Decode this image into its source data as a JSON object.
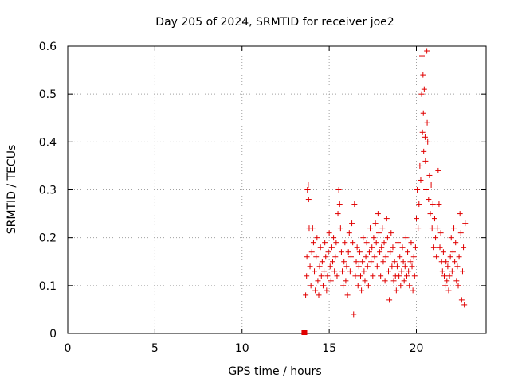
{
  "chart_data": {
    "type": "scatter",
    "title": "Day 205 of 2024, SRMTID for receiver joe2",
    "xlabel": "GPS time / hours",
    "ylabel": "SRMTID / TECUs",
    "xlim": [
      0,
      24
    ],
    "ylim": [
      0,
      0.6
    ],
    "xticks": [
      0,
      5,
      10,
      15,
      20
    ],
    "xtick_labels": [
      "0",
      "5",
      "10",
      "15",
      "20"
    ],
    "yticks": [
      0,
      0.1,
      0.2,
      0.3,
      0.4,
      0.5,
      0.6
    ],
    "ytick_labels": [
      "0",
      "0.1",
      "0.2",
      "0.3",
      "0.4",
      "0.5",
      "0.6"
    ],
    "grid": true,
    "marker": "plus",
    "color": "#e00000",
    "series": [
      {
        "name": "SRMTID",
        "points": [
          [
            13.55,
            0.0
          ],
          [
            13.6,
            0.0
          ],
          [
            13.65,
            0.08
          ],
          [
            13.7,
            0.12
          ],
          [
            13.72,
            0.16
          ],
          [
            13.75,
            0.3
          ],
          [
            13.8,
            0.31
          ],
          [
            13.82,
            0.28
          ],
          [
            13.85,
            0.22
          ],
          [
            13.9,
            0.14
          ],
          [
            13.95,
            0.1
          ],
          [
            14.0,
            0.17
          ],
          [
            14.05,
            0.22
          ],
          [
            14.1,
            0.19
          ],
          [
            14.15,
            0.13
          ],
          [
            14.2,
            0.09
          ],
          [
            14.25,
            0.16
          ],
          [
            14.3,
            0.2
          ],
          [
            14.35,
            0.11
          ],
          [
            14.4,
            0.08
          ],
          [
            14.45,
            0.14
          ],
          [
            14.5,
            0.18
          ],
          [
            14.55,
            0.12
          ],
          [
            14.6,
            0.15
          ],
          [
            14.65,
            0.1
          ],
          [
            14.7,
            0.13
          ],
          [
            14.75,
            0.19
          ],
          [
            14.8,
            0.16
          ],
          [
            14.85,
            0.09
          ],
          [
            14.9,
            0.12
          ],
          [
            14.95,
            0.17
          ],
          [
            15.0,
            0.21
          ],
          [
            15.05,
            0.14
          ],
          [
            15.1,
            0.11
          ],
          [
            15.15,
            0.18
          ],
          [
            15.2,
            0.15
          ],
          [
            15.25,
            0.2
          ],
          [
            15.3,
            0.13
          ],
          [
            15.35,
            0.16
          ],
          [
            15.4,
            0.19
          ],
          [
            15.45,
            0.12
          ],
          [
            15.5,
            0.25
          ],
          [
            15.55,
            0.3
          ],
          [
            15.6,
            0.27
          ],
          [
            15.65,
            0.22
          ],
          [
            15.7,
            0.17
          ],
          [
            15.75,
            0.13
          ],
          [
            15.8,
            0.1
          ],
          [
            15.85,
            0.15
          ],
          [
            15.9,
            0.19
          ],
          [
            15.95,
            0.11
          ],
          [
            16.0,
            0.14
          ],
          [
            16.05,
            0.08
          ],
          [
            16.1,
            0.17
          ],
          [
            16.15,
            0.21
          ],
          [
            16.2,
            0.13
          ],
          [
            16.25,
            0.16
          ],
          [
            16.3,
            0.23
          ],
          [
            16.35,
            0.19
          ],
          [
            16.4,
            0.04
          ],
          [
            16.45,
            0.27
          ],
          [
            16.5,
            0.12
          ],
          [
            16.55,
            0.15
          ],
          [
            16.6,
            0.18
          ],
          [
            16.65,
            0.1
          ],
          [
            16.7,
            0.14
          ],
          [
            16.75,
            0.17
          ],
          [
            16.8,
            0.12
          ],
          [
            16.85,
            0.09
          ],
          [
            16.9,
            0.15
          ],
          [
            16.95,
            0.2
          ],
          [
            17.0,
            0.13
          ],
          [
            17.05,
            0.11
          ],
          [
            17.1,
            0.16
          ],
          [
            17.15,
            0.19
          ],
          [
            17.2,
            0.14
          ],
          [
            17.25,
            0.1
          ],
          [
            17.3,
            0.17
          ],
          [
            17.35,
            0.22
          ],
          [
            17.4,
            0.15
          ],
          [
            17.45,
            0.18
          ],
          [
            17.5,
            0.12
          ],
          [
            17.55,
            0.2
          ],
          [
            17.6,
            0.16
          ],
          [
            17.65,
            0.23
          ],
          [
            17.7,
            0.19
          ],
          [
            17.75,
            0.14
          ],
          [
            17.8,
            0.25
          ],
          [
            17.85,
            0.21
          ],
          [
            17.9,
            0.17
          ],
          [
            17.95,
            0.12
          ],
          [
            18.0,
            0.18
          ],
          [
            18.05,
            0.22
          ],
          [
            18.1,
            0.15
          ],
          [
            18.15,
            0.19
          ],
          [
            18.2,
            0.11
          ],
          [
            18.25,
            0.16
          ],
          [
            18.3,
            0.24
          ],
          [
            18.35,
            0.2
          ],
          [
            18.4,
            0.13
          ],
          [
            18.45,
            0.07
          ],
          [
            18.5,
            0.17
          ],
          [
            18.55,
            0.21
          ],
          [
            18.6,
            0.14
          ],
          [
            18.65,
            0.18
          ],
          [
            18.7,
            0.11
          ],
          [
            18.75,
            0.15
          ],
          [
            18.8,
            0.12
          ],
          [
            18.85,
            0.09
          ],
          [
            18.9,
            0.14
          ],
          [
            18.95,
            0.19
          ],
          [
            19.0,
            0.12
          ],
          [
            19.05,
            0.16
          ],
          [
            19.1,
            0.1
          ],
          [
            19.15,
            0.13
          ],
          [
            19.2,
            0.18
          ],
          [
            19.25,
            0.15
          ],
          [
            19.3,
            0.11
          ],
          [
            19.35,
            0.14
          ],
          [
            19.4,
            0.2
          ],
          [
            19.45,
            0.12
          ],
          [
            19.5,
            0.17
          ],
          [
            19.55,
            0.13
          ],
          [
            19.6,
            0.1
          ],
          [
            19.65,
            0.15
          ],
          [
            19.7,
            0.19
          ],
          [
            19.75,
            0.14
          ],
          [
            19.8,
            0.09
          ],
          [
            19.85,
            0.16
          ],
          [
            19.9,
            0.12
          ],
          [
            19.95,
            0.18
          ],
          [
            20.0,
            0.24
          ],
          [
            20.05,
            0.3
          ],
          [
            20.1,
            0.22
          ],
          [
            20.15,
            0.27
          ],
          [
            20.2,
            0.35
          ],
          [
            20.25,
            0.32
          ],
          [
            20.3,
            0.5
          ],
          [
            20.32,
            0.58
          ],
          [
            20.35,
            0.42
          ],
          [
            20.38,
            0.54
          ],
          [
            20.4,
            0.46
          ],
          [
            20.42,
            0.38
          ],
          [
            20.45,
            0.51
          ],
          [
            20.5,
            0.41
          ],
          [
            20.52,
            0.36
          ],
          [
            20.55,
            0.3
          ],
          [
            20.6,
            0.59
          ],
          [
            20.62,
            0.44
          ],
          [
            20.65,
            0.4
          ],
          [
            20.7,
            0.28
          ],
          [
            20.75,
            0.33
          ],
          [
            20.8,
            0.25
          ],
          [
            20.85,
            0.31
          ],
          [
            20.9,
            0.22
          ],
          [
            20.95,
            0.27
          ],
          [
            21.0,
            0.18
          ],
          [
            21.05,
            0.24
          ],
          [
            21.1,
            0.2
          ],
          [
            21.15,
            0.16
          ],
          [
            21.2,
            0.22
          ],
          [
            21.25,
            0.34
          ],
          [
            21.3,
            0.27
          ],
          [
            21.35,
            0.18
          ],
          [
            21.4,
            0.21
          ],
          [
            21.45,
            0.15
          ],
          [
            21.5,
            0.13
          ],
          [
            21.55,
            0.17
          ],
          [
            21.6,
            0.12
          ],
          [
            21.65,
            0.1
          ],
          [
            21.7,
            0.15
          ],
          [
            21.75,
            0.11
          ],
          [
            21.8,
            0.14
          ],
          [
            21.85,
            0.09
          ],
          [
            21.9,
            0.12
          ],
          [
            21.95,
            0.16
          ],
          [
            22.0,
            0.2
          ],
          [
            22.05,
            0.13
          ],
          [
            22.1,
            0.17
          ],
          [
            22.15,
            0.22
          ],
          [
            22.2,
            0.15
          ],
          [
            22.25,
            0.19
          ],
          [
            22.3,
            0.11
          ],
          [
            22.35,
            0.14
          ],
          [
            22.4,
            0.1
          ],
          [
            22.45,
            0.16
          ],
          [
            22.5,
            0.25
          ],
          [
            22.55,
            0.21
          ],
          [
            22.6,
            0.07
          ],
          [
            22.65,
            0.13
          ],
          [
            22.7,
            0.18
          ],
          [
            22.75,
            0.06
          ],
          [
            22.8,
            0.23
          ]
        ]
      }
    ]
  }
}
